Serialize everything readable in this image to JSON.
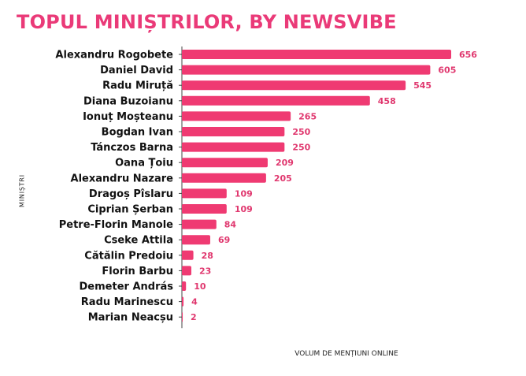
{
  "title": "TOPUL MINIȘTRILOR, BY NEWSVIBE",
  "chart_data": {
    "type": "bar",
    "orientation": "horizontal",
    "title": "TOPUL MINIȘTRILOR, BY NEWSVIBE",
    "xlabel": "VOLUM DE MENȚIUNI ONLINE",
    "ylabel": "MINIȘTRI",
    "categories": [
      "Alexandru Rogobete",
      "Daniel David",
      "Radu Miruță",
      "Diana Buzoianu",
      "Ionuț Moșteanu",
      "Bogdan Ivan",
      "Tánczos Barna",
      "Oana Țoiu",
      "Alexandru Nazare",
      "Dragoș Pîslaru",
      "Ciprian Șerban",
      "Petre-Florin Manole",
      "Cseke Attila",
      "Cătălin Predoiu",
      "Florin Barbu",
      "Demeter András",
      "Radu Marinescu",
      "Marian Neacșu"
    ],
    "values": [
      656,
      605,
      545,
      458,
      265,
      250,
      250,
      209,
      205,
      109,
      109,
      84,
      69,
      28,
      23,
      10,
      4,
      2
    ],
    "xlim": [
      0,
      656
    ],
    "grid": false,
    "bar_color": "#ef3a72"
  }
}
